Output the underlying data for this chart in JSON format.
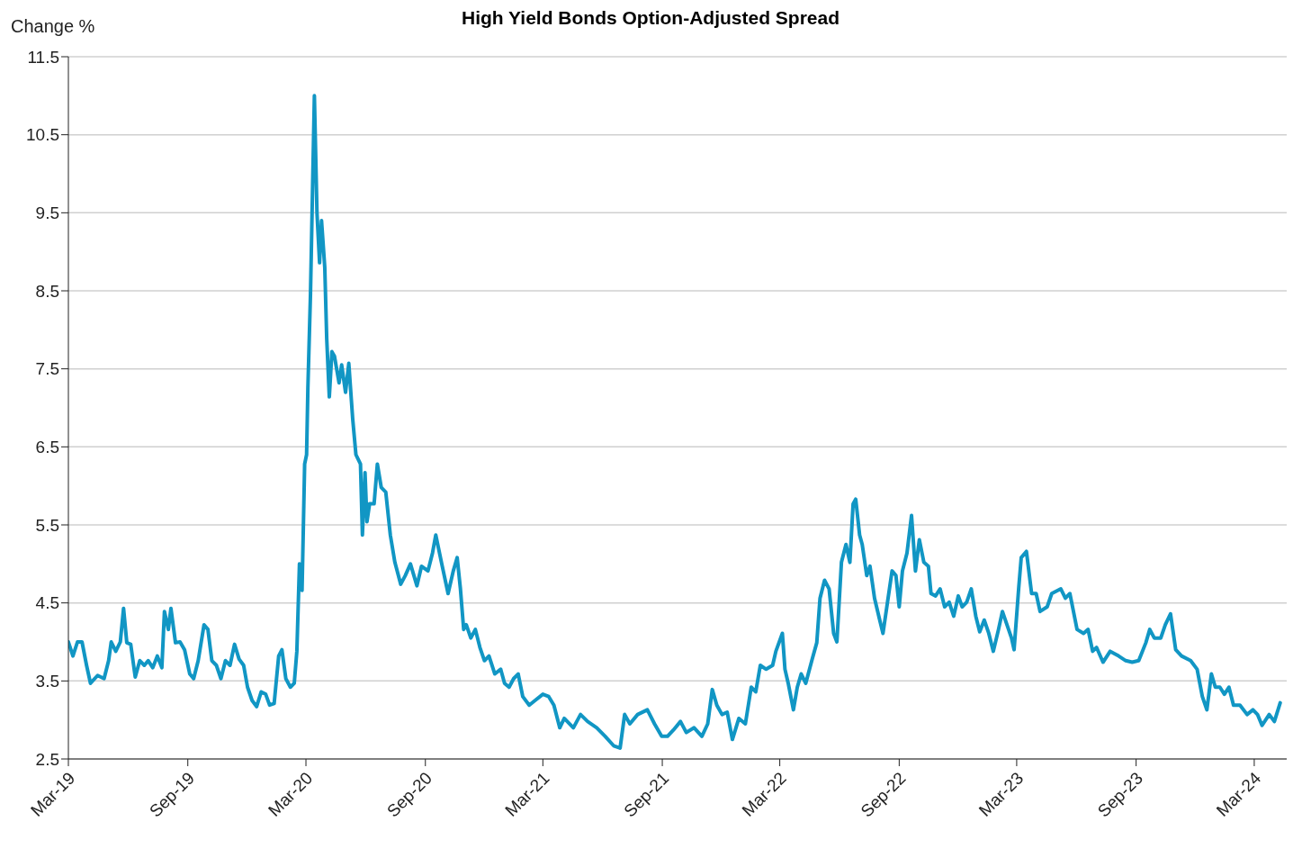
{
  "chart_data": {
    "type": "line",
    "title": "High Yield Bonds Option-Adjusted Spread",
    "ylabel": "Change %",
    "x": [
      "2019-03-01",
      "2019-03-08",
      "2019-03-15",
      "2019-03-22",
      "2019-03-29",
      "2019-04-04",
      "2019-04-15",
      "2019-04-25",
      "2019-05-02",
      "2019-05-06",
      "2019-05-13",
      "2019-05-20",
      "2019-05-25",
      "2019-05-30",
      "2019-06-05",
      "2019-06-12",
      "2019-06-19",
      "2019-06-26",
      "2019-07-02",
      "2019-07-09",
      "2019-07-16",
      "2019-07-23",
      "2019-07-27",
      "2019-08-02",
      "2019-08-06",
      "2019-08-13",
      "2019-08-20",
      "2019-08-27",
      "2019-09-04",
      "2019-09-10",
      "2019-09-17",
      "2019-09-26",
      "2019-10-02",
      "2019-10-08",
      "2019-10-15",
      "2019-10-22",
      "2019-10-29",
      "2019-11-05",
      "2019-11-12",
      "2019-11-19",
      "2019-11-26",
      "2019-12-02",
      "2019-12-09",
      "2019-12-16",
      "2019-12-23",
      "2019-12-30",
      "2020-01-05",
      "2020-01-12",
      "2020-01-19",
      "2020-01-24",
      "2020-01-30",
      "2020-02-06",
      "2020-02-12",
      "2020-02-16",
      "2020-02-20",
      "2020-02-24",
      "2020-02-28",
      "2020-03-02",
      "2020-03-04",
      "2020-03-08",
      "2020-03-14",
      "2020-03-18",
      "2020-03-22",
      "2020-03-25",
      "2020-03-30",
      "2020-04-02",
      "2020-04-06",
      "2020-04-10",
      "2020-04-14",
      "2020-04-21",
      "2020-04-25",
      "2020-05-01",
      "2020-05-06",
      "2020-05-12",
      "2020-05-17",
      "2020-05-24",
      "2020-05-27",
      "2020-05-31",
      "2020-06-03",
      "2020-06-07",
      "2020-06-14",
      "2020-06-19",
      "2020-06-25",
      "2020-07-02",
      "2020-07-09",
      "2020-07-16",
      "2020-07-25",
      "2020-08-01",
      "2020-08-09",
      "2020-08-19",
      "2020-08-26",
      "2020-09-05",
      "2020-09-12",
      "2020-09-17",
      "2020-09-27",
      "2020-10-06",
      "2020-10-14",
      "2020-10-20",
      "2020-10-25",
      "2020-10-30",
      "2020-11-03",
      "2020-11-10",
      "2020-11-17",
      "2020-11-24",
      "2020-12-01",
      "2020-12-08",
      "2020-12-17",
      "2020-12-26",
      "2021-01-01",
      "2021-01-08",
      "2021-01-15",
      "2021-01-22",
      "2021-01-29",
      "2021-02-08",
      "2021-02-17",
      "2021-03-01",
      "2021-03-10",
      "2021-03-18",
      "2021-03-27",
      "2021-04-03",
      "2021-04-17",
      "2021-04-28",
      "2021-05-09",
      "2021-05-23",
      "2021-06-05",
      "2021-06-18",
      "2021-06-28",
      "2021-07-05",
      "2021-07-13",
      "2021-07-25",
      "2021-08-09",
      "2021-08-20",
      "2021-08-31",
      "2021-09-09",
      "2021-09-18",
      "2021-09-29",
      "2021-10-08",
      "2021-10-20",
      "2021-11-01",
      "2021-11-10",
      "2021-11-17",
      "2021-11-24",
      "2021-12-02",
      "2021-12-10",
      "2021-12-18",
      "2021-12-28",
      "2022-01-07",
      "2022-01-16",
      "2022-01-23",
      "2022-01-30",
      "2022-02-08",
      "2022-02-18",
      "2022-02-23",
      "2022-03-05",
      "2022-03-09",
      "2022-03-14",
      "2022-03-22",
      "2022-03-28",
      "2022-04-03",
      "2022-04-10",
      "2022-04-20",
      "2022-04-27",
      "2022-05-02",
      "2022-05-09",
      "2022-05-16",
      "2022-05-23",
      "2022-05-28",
      "2022-06-04",
      "2022-06-11",
      "2022-06-17",
      "2022-06-22",
      "2022-06-26",
      "2022-07-02",
      "2022-07-06",
      "2022-07-13",
      "2022-07-18",
      "2022-07-25",
      "2022-08-02",
      "2022-08-07",
      "2022-08-14",
      "2022-08-21",
      "2022-08-27",
      "2022-09-01",
      "2022-09-06",
      "2022-09-13",
      "2022-09-20",
      "2022-09-26",
      "2022-10-02",
      "2022-10-09",
      "2022-10-16",
      "2022-10-20",
      "2022-10-27",
      "2022-11-03",
      "2022-11-10",
      "2022-11-17",
      "2022-11-24",
      "2022-12-01",
      "2022-12-07",
      "2022-12-14",
      "2022-12-21",
      "2022-12-28",
      "2023-01-03",
      "2023-01-10",
      "2023-01-17",
      "2023-01-24",
      "2023-02-01",
      "2023-02-07",
      "2023-02-14",
      "2023-02-21",
      "2023-02-25",
      "2023-03-04",
      "2023-03-08",
      "2023-03-16",
      "2023-03-24",
      "2023-03-31",
      "2023-04-06",
      "2023-04-17",
      "2023-04-24",
      "2023-05-08",
      "2023-05-15",
      "2023-05-22",
      "2023-06-02",
      "2023-06-12",
      "2023-06-19",
      "2023-06-26",
      "2023-07-02",
      "2023-07-12",
      "2023-07-23",
      "2023-08-05",
      "2023-08-16",
      "2023-08-26",
      "2023-09-05",
      "2023-09-16",
      "2023-09-22",
      "2023-09-29",
      "2023-10-09",
      "2023-10-16",
      "2023-10-24",
      "2023-11-01",
      "2023-11-10",
      "2023-11-24",
      "2023-12-04",
      "2023-12-12",
      "2023-12-19",
      "2023-12-26",
      "2024-01-01",
      "2024-01-08",
      "2024-01-15",
      "2024-01-22",
      "2024-01-29",
      "2024-02-08",
      "2024-02-19",
      "2024-02-28",
      "2024-03-06",
      "2024-03-13",
      "2024-03-24",
      "2024-04-01",
      "2024-04-10"
    ],
    "series": [
      {
        "color": "#1196c4",
        "values": [
          4.0,
          3.82,
          4.0,
          4.0,
          3.7,
          3.47,
          3.57,
          3.53,
          3.76,
          4.0,
          3.88,
          4.0,
          4.43,
          3.99,
          3.97,
          3.55,
          3.76,
          3.7,
          3.76,
          3.67,
          3.82,
          3.67,
          4.39,
          4.16,
          4.43,
          3.99,
          4.0,
          3.9,
          3.59,
          3.53,
          3.76,
          4.22,
          4.16,
          3.76,
          3.7,
          3.53,
          3.76,
          3.7,
          3.97,
          3.78,
          3.7,
          3.42,
          3.25,
          3.17,
          3.36,
          3.33,
          3.19,
          3.21,
          3.82,
          3.9,
          3.53,
          3.42,
          3.47,
          3.88,
          5.0,
          4.66,
          6.28,
          6.4,
          7.26,
          8.46,
          11.0,
          9.5,
          8.86,
          9.4,
          8.8,
          7.89,
          7.14,
          7.72,
          7.66,
          7.32,
          7.55,
          7.2,
          7.57,
          6.86,
          6.4,
          6.28,
          5.37,
          6.17,
          5.54,
          5.77,
          5.77,
          6.28,
          5.98,
          5.92,
          5.37,
          5.02,
          4.74,
          4.85,
          5.0,
          4.72,
          4.97,
          4.91,
          5.14,
          5.37,
          4.97,
          4.62,
          4.91,
          5.08,
          4.68,
          4.16,
          4.22,
          4.05,
          4.16,
          3.93,
          3.76,
          3.82,
          3.59,
          3.65,
          3.47,
          3.42,
          3.53,
          3.59,
          3.3,
          3.19,
          3.25,
          3.33,
          3.3,
          3.19,
          2.9,
          3.02,
          2.9,
          3.07,
          2.98,
          2.9,
          2.79,
          2.67,
          2.64,
          3.07,
          2.95,
          3.07,
          3.13,
          2.95,
          2.79,
          2.79,
          2.87,
          2.98,
          2.84,
          2.9,
          2.79,
          2.95,
          3.39,
          3.19,
          3.07,
          3.1,
          2.75,
          3.02,
          2.95,
          3.42,
          3.36,
          3.7,
          3.65,
          3.7,
          3.88,
          4.11,
          3.65,
          3.47,
          3.13,
          3.42,
          3.59,
          3.47,
          3.78,
          3.99,
          4.56,
          4.79,
          4.68,
          4.11,
          4.0,
          5.02,
          5.25,
          5.02,
          5.77,
          5.83,
          5.37,
          5.25,
          4.85,
          4.97,
          4.56,
          4.28,
          4.11,
          4.51,
          4.91,
          4.85,
          4.45,
          4.91,
          5.14,
          5.62,
          4.91,
          5.31,
          5.02,
          4.97,
          4.62,
          4.59,
          4.68,
          4.45,
          4.51,
          4.33,
          4.59,
          4.45,
          4.51,
          4.68,
          4.33,
          4.13,
          4.28,
          4.11,
          3.88,
          4.16,
          4.39,
          4.22,
          4.05,
          3.9,
          4.68,
          5.08,
          5.16,
          4.62,
          4.62,
          4.39,
          4.45,
          4.62,
          4.68,
          4.56,
          4.62,
          4.16,
          4.11,
          4.16,
          3.88,
          3.93,
          3.74,
          3.88,
          3.82,
          3.76,
          3.74,
          3.76,
          3.99,
          4.16,
          4.05,
          4.05,
          4.22,
          4.36,
          3.9,
          3.82,
          3.76,
          3.65,
          3.3,
          3.13,
          3.59,
          3.42,
          3.42,
          3.33,
          3.42,
          3.19,
          3.19,
          3.07,
          3.13,
          3.07,
          2.93,
          3.07,
          2.98,
          3.22
        ]
      }
    ],
    "xlim": [
      "2019-03-01",
      "2024-04-20"
    ],
    "xticks": [
      {
        "value": "2019-03-01",
        "label": "Mar-19"
      },
      {
        "value": "2019-09-01",
        "label": "Sep-19"
      },
      {
        "value": "2020-03-01",
        "label": "Mar-20"
      },
      {
        "value": "2020-09-01",
        "label": "Sep-20"
      },
      {
        "value": "2021-03-01",
        "label": "Mar-21"
      },
      {
        "value": "2021-09-01",
        "label": "Sep-21"
      },
      {
        "value": "2022-03-01",
        "label": "Mar-22"
      },
      {
        "value": "2022-09-01",
        "label": "Sep-22"
      },
      {
        "value": "2023-03-01",
        "label": "Mar-23"
      },
      {
        "value": "2023-09-01",
        "label": "Sep-23"
      },
      {
        "value": "2024-03-01",
        "label": "Mar-24"
      }
    ],
    "ylim": [
      2.5,
      11.5
    ],
    "yticks": [
      2.5,
      3.5,
      4.5,
      5.5,
      6.5,
      7.5,
      8.5,
      9.5,
      10.5,
      11.5
    ],
    "grid": "y",
    "legend": false,
    "marker": "none",
    "line_style": "solid"
  }
}
